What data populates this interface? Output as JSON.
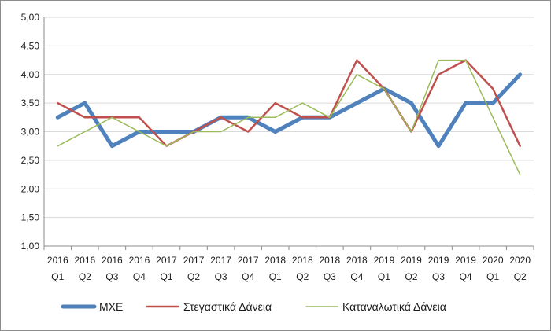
{
  "chart_data": {
    "type": "line",
    "categories": [
      [
        "2016",
        "Q1"
      ],
      [
        "2016",
        "Q2"
      ],
      [
        "2016",
        "Q3"
      ],
      [
        "2016",
        "Q4"
      ],
      [
        "2017",
        "Q1"
      ],
      [
        "2017",
        "Q2"
      ],
      [
        "2017",
        "Q3"
      ],
      [
        "2017",
        "Q4"
      ],
      [
        "2018",
        "Q1"
      ],
      [
        "2018",
        "Q2"
      ],
      [
        "2018",
        "Q3"
      ],
      [
        "2018",
        "Q4"
      ],
      [
        "2019",
        "Q1"
      ],
      [
        "2019",
        "Q2"
      ],
      [
        "2019",
        "Q3"
      ],
      [
        "2019",
        "Q4"
      ],
      [
        "2020",
        "Q1"
      ],
      [
        "2020",
        "Q2"
      ]
    ],
    "ylim": [
      1.0,
      5.0
    ],
    "yticks": [
      "1,00",
      "1,50",
      "2,00",
      "2,50",
      "3,00",
      "3,50",
      "4,00",
      "4,50",
      "5,00"
    ],
    "grid": true,
    "legend_position": "bottom",
    "series": [
      {
        "name": "ΜΧΕ",
        "color": "#4f81bd",
        "values": [
          3.25,
          3.5,
          2.75,
          3.0,
          3.0,
          3.0,
          3.25,
          3.25,
          3.0,
          3.25,
          3.25,
          3.5,
          3.75,
          3.5,
          2.75,
          3.5,
          3.5,
          4.0
        ]
      },
      {
        "name": "Στεγαστικά Δάνεια",
        "color": "#c0504d",
        "values": [
          3.5,
          3.25,
          3.25,
          3.25,
          2.75,
          3.0,
          3.25,
          3.0,
          3.5,
          3.25,
          3.25,
          4.25,
          3.75,
          3.0,
          4.0,
          4.25,
          3.75,
          2.75
        ]
      },
      {
        "name": "Καταναλωτικά Δάνεια",
        "color": "#9bbb59",
        "values": [
          2.75,
          3.0,
          3.25,
          3.0,
          2.75,
          3.0,
          3.0,
          3.25,
          3.25,
          3.5,
          3.25,
          4.0,
          3.75,
          3.0,
          4.25,
          4.25,
          3.25,
          2.25
        ]
      }
    ]
  }
}
